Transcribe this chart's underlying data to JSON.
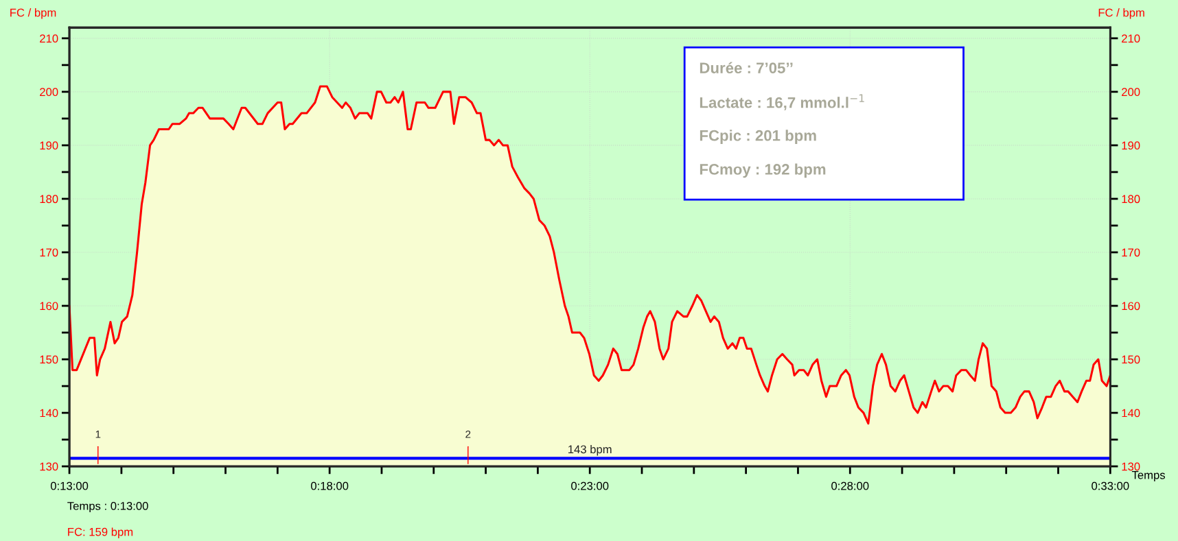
{
  "chart_data": {
    "type": "area",
    "xlabel": "Temps",
    "ylabel": "FC / bpm",
    "y2label": "FC / bpm",
    "x": [
      13.0,
      13.06,
      13.14,
      13.39,
      13.48,
      13.53,
      13.59,
      13.68,
      13.79,
      13.87,
      13.94,
      14.01,
      14.11,
      14.21,
      14.3,
      14.39,
      14.46,
      14.55,
      14.62,
      14.72,
      14.91,
      14.98,
      15.12,
      15.24,
      15.3,
      15.38,
      15.48,
      15.56,
      15.7,
      15.96,
      16.06,
      16.15,
      16.31,
      16.38,
      16.62,
      16.71,
      16.81,
      17.0,
      17.07,
      17.14,
      17.23,
      17.29,
      17.46,
      17.56,
      17.72,
      17.82,
      17.95,
      18.05,
      18.24,
      18.31,
      18.4,
      18.49,
      18.57,
      18.73,
      18.8,
      18.91,
      18.99,
      19.09,
      19.17,
      19.25,
      19.32,
      19.41,
      19.5,
      19.56,
      19.67,
      19.83,
      19.9,
      20.03,
      20.18,
      20.32,
      20.39,
      20.49,
      20.61,
      20.73,
      20.83,
      20.9,
      21.0,
      21.07,
      21.16,
      21.25,
      21.33,
      21.42,
      21.51,
      21.62,
      21.74,
      21.84,
      21.92,
      22.03,
      22.13,
      22.23,
      22.31,
      22.41,
      22.52,
      22.59,
      22.66,
      22.81,
      22.89,
      22.99,
      23.08,
      23.17,
      23.25,
      23.35,
      23.45,
      23.53,
      23.61,
      23.76,
      23.84,
      23.93,
      24.03,
      24.1,
      24.16,
      24.25,
      24.34,
      24.41,
      24.51,
      24.58,
      24.68,
      24.8,
      24.87,
      24.97,
      25.06,
      25.14,
      25.23,
      25.32,
      25.39,
      25.48,
      25.56,
      25.65,
      25.74,
      25.81,
      25.88,
      25.95,
      26.02,
      26.1,
      26.2,
      26.27,
      26.36,
      26.42,
      26.5,
      26.6,
      26.7,
      26.79,
      26.89,
      26.93,
      27.02,
      27.11,
      27.19,
      27.28,
      27.37,
      27.45,
      27.54,
      27.61,
      27.74,
      27.83,
      27.92,
      27.99,
      28.08,
      28.16,
      28.26,
      28.35,
      28.44,
      28.52,
      28.61,
      28.69,
      28.78,
      28.87,
      28.96,
      29.04,
      29.13,
      29.22,
      29.3,
      29.39,
      29.46,
      29.56,
      29.63,
      29.71,
      29.79,
      29.88,
      29.97,
      30.04,
      30.14,
      30.23,
      30.31,
      30.4,
      30.47,
      30.55,
      30.63,
      30.72,
      30.81,
      30.89,
      30.98,
      31.09,
      31.18,
      31.27,
      31.35,
      31.44,
      31.53,
      31.6,
      31.69,
      31.77,
      31.86,
      31.95,
      32.03,
      32.12,
      32.19,
      32.28,
      32.37,
      32.45,
      32.54,
      32.61,
      32.68,
      32.77,
      32.84,
      32.93,
      33.0
    ],
    "series": [
      {
        "color": "#ff0000",
        "values": [
          160,
          148,
          148,
          154,
          154,
          147,
          150,
          152,
          157,
          153,
          154,
          157,
          158,
          162,
          170,
          179,
          183,
          190,
          191,
          193,
          193,
          194,
          194,
          195,
          196,
          196,
          197,
          197,
          195,
          195,
          194,
          193,
          197,
          197,
          194,
          194,
          196,
          198,
          198,
          193,
          194,
          194,
          196,
          196,
          198,
          201,
          201,
          199,
          197,
          198,
          197,
          195,
          196,
          196,
          195,
          200,
          200,
          198,
          198,
          199,
          198,
          200,
          193,
          193,
          198,
          198,
          197,
          197,
          200,
          200,
          194,
          199,
          199,
          198,
          196,
          196,
          191,
          191,
          190,
          191,
          190,
          190,
          186,
          184,
          182,
          181,
          180,
          176,
          175,
          173,
          170,
          165,
          160,
          158,
          155,
          155,
          154,
          151,
          147,
          146,
          147,
          149,
          152,
          151,
          148,
          148,
          149,
          152,
          156,
          158,
          159,
          157,
          152,
          150,
          152,
          157,
          159,
          158,
          158,
          160,
          162,
          161,
          159,
          157,
          158,
          157,
          154,
          152,
          153,
          152,
          154,
          154,
          152,
          152,
          149,
          147,
          145,
          144,
          147,
          150,
          151,
          150,
          149,
          147,
          148,
          148,
          147,
          149,
          150,
          146,
          143,
          145,
          145,
          147,
          148,
          147,
          143,
          141,
          140,
          138,
          145,
          149,
          151,
          149,
          145,
          144,
          146,
          147,
          144,
          141,
          140,
          142,
          141,
          144,
          146,
          144,
          145,
          145,
          144,
          147,
          148,
          148,
          147,
          146,
          150,
          153,
          152,
          145,
          144,
          141,
          140,
          140,
          141,
          143,
          144,
          144,
          142,
          139,
          141,
          143,
          143,
          145,
          146,
          144,
          144,
          143,
          142,
          144,
          146,
          146,
          149,
          150,
          146,
          145,
          147
        ]
      }
    ],
    "xlim": [
      13,
      33
    ],
    "xticks": [
      {
        "value": 13,
        "label": "0:13:00"
      },
      {
        "value": 14,
        "label": null
      },
      {
        "value": 15,
        "label": null
      },
      {
        "value": 16,
        "label": null
      },
      {
        "value": 17,
        "label": null
      },
      {
        "value": 18,
        "label": "0:18:00"
      },
      {
        "value": 19,
        "label": null
      },
      {
        "value": 20,
        "label": null
      },
      {
        "value": 21,
        "label": null
      },
      {
        "value": 22,
        "label": null
      },
      {
        "value": 23,
        "label": "0:23:00"
      },
      {
        "value": 24,
        "label": null
      },
      {
        "value": 25,
        "label": null
      },
      {
        "value": 26,
        "label": null
      },
      {
        "value": 27,
        "label": null
      },
      {
        "value": 28,
        "label": "0:28:00"
      },
      {
        "value": 29,
        "label": null
      },
      {
        "value": 30,
        "label": null
      },
      {
        "value": 31,
        "label": null
      },
      {
        "value": 32,
        "label": null
      },
      {
        "value": 33,
        "label": "0:33:00"
      }
    ],
    "ylim": [
      130,
      212
    ],
    "yticks": [
      130,
      {
        "value": 135,
        "label": null
      },
      140,
      {
        "value": 145,
        "label": null
      },
      150,
      {
        "value": 155,
        "label": null
      },
      160,
      {
        "value": 165,
        "label": null
      },
      170,
      {
        "value": 175,
        "label": null
      },
      180,
      {
        "value": 185,
        "label": null
      },
      190,
      {
        "value": 195,
        "label": null
      },
      200,
      {
        "value": 205,
        "label": null
      },
      210
    ],
    "y2lim": [
      130,
      212
    ],
    "y2ticks": [
      130,
      {
        "value": 135,
        "label": null
      },
      140,
      {
        "value": 145,
        "label": null
      },
      150,
      {
        "value": 155,
        "label": null
      },
      160,
      {
        "value": 165,
        "label": null
      },
      170,
      {
        "value": 175,
        "label": null
      },
      180,
      {
        "value": 185,
        "label": null
      },
      190,
      {
        "value": 195,
        "label": null
      },
      200,
      {
        "value": 205,
        "label": null
      },
      210
    ],
    "ref_lines": [
      {
        "axis": "y",
        "value": 131.5,
        "label": "143 bpm",
        "color": "#0000ff"
      }
    ],
    "annotations": [
      "1",
      "2",
      "Durée : 7’05’’",
      "Lactate : 16,7 mmol.l$^{−1}$",
      "FCpic : 201 bpm",
      "FCmoy : 192 bpm",
      "Temps : 0:13:00",
      "FC: 159 bpm"
    ],
    "grid": true,
    "marker": "none",
    "line_style": "solid"
  }
}
